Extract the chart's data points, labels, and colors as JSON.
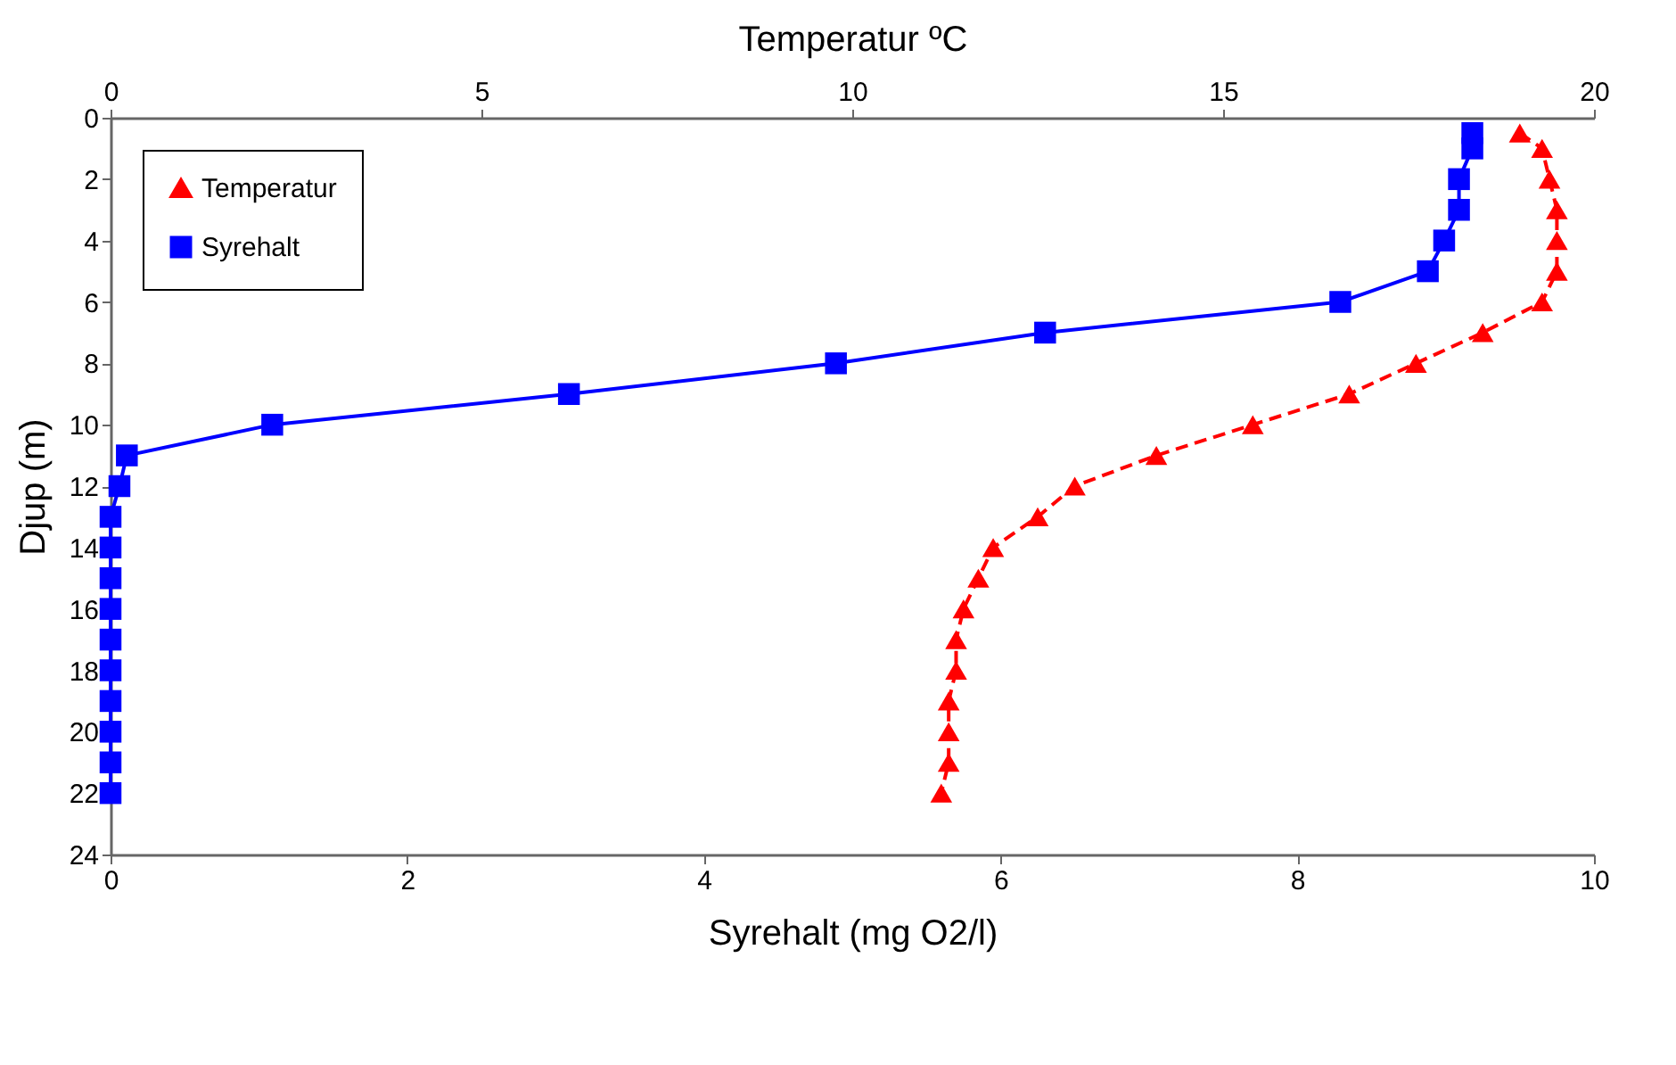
{
  "chart_data": {
    "type": "line",
    "xlabel": "Syrehalt (mg O2/l)",
    "x2label": "Temperatur ºC",
    "ylabel": "Djup (m)",
    "xlim": [
      0,
      10
    ],
    "xticks": [
      0,
      2,
      4,
      6,
      8,
      10
    ],
    "x2lim": [
      0,
      20
    ],
    "x2ticks": [
      0,
      5,
      10,
      15,
      20
    ],
    "ylim": [
      24,
      0
    ],
    "yticks": [
      0,
      2,
      4,
      6,
      8,
      10,
      12,
      14,
      16,
      18,
      20,
      22,
      24
    ],
    "grid": false,
    "legend": "top left",
    "series": [
      {
        "name": "Temperatur",
        "color": "#ff0000",
        "axis": "x2",
        "marker": "triangle",
        "line_style": "dashed",
        "x": [
          19.0,
          19.3,
          19.4,
          19.5,
          19.5,
          19.5,
          19.3,
          18.5,
          17.6,
          16.7,
          15.4,
          14.1,
          13.0,
          12.5,
          11.9,
          11.7,
          11.5,
          11.4,
          11.4,
          11.3,
          11.3,
          11.3,
          11.2
        ],
        "values": [
          0.5,
          1,
          2,
          3,
          4,
          5,
          6,
          7,
          8,
          9,
          10,
          11,
          12,
          13,
          14,
          15,
          16,
          17,
          18,
          19,
          20,
          21,
          22
        ]
      },
      {
        "name": "Syrehalt",
        "color": "#0000ff",
        "marker": "square",
        "line_style": "solid",
        "x": [
          9.18,
          9.18,
          9.09,
          9.09,
          8.99,
          8.88,
          8.29,
          6.3,
          4.89,
          3.09,
          1.09,
          0.11,
          0.06,
          0,
          0,
          0,
          0,
          0,
          0,
          0,
          0,
          0,
          0
        ],
        "values": [
          0.5,
          1,
          2,
          3,
          4,
          5,
          6,
          7,
          8,
          9,
          10,
          11,
          12,
          13,
          14,
          15,
          16,
          17,
          18,
          19,
          20,
          21,
          22
        ]
      }
    ]
  }
}
